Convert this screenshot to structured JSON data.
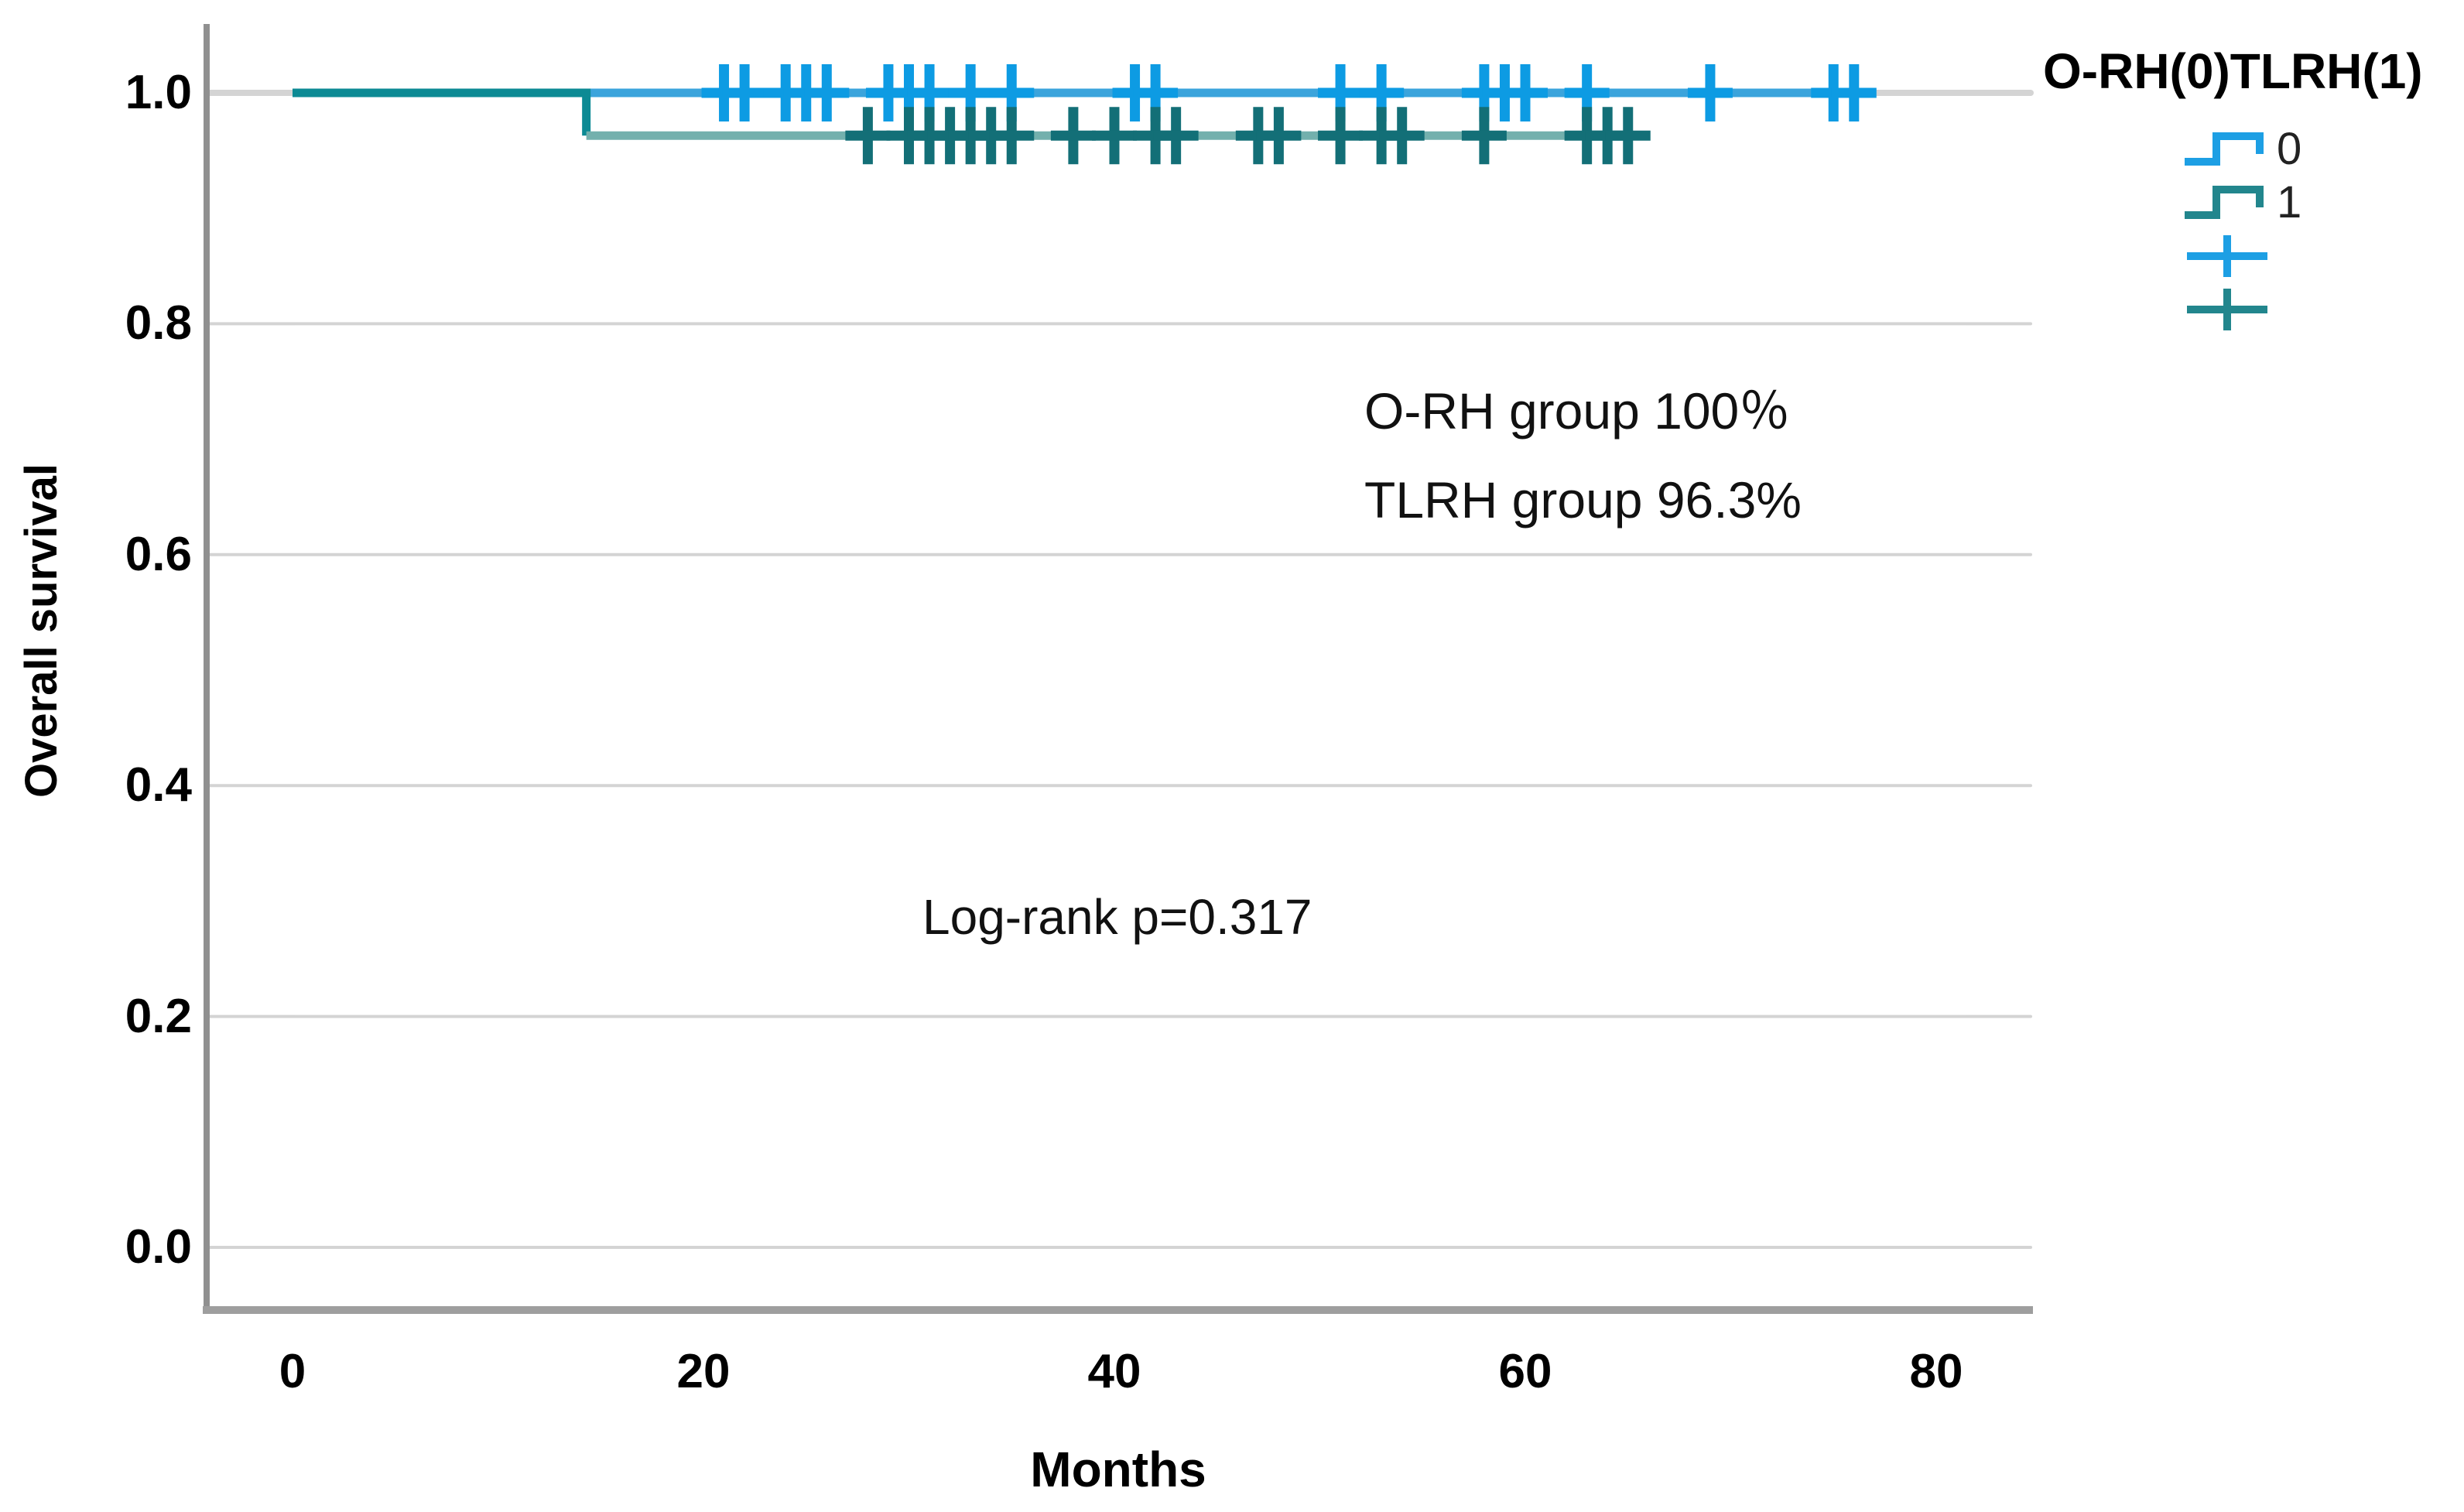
{
  "chart_data": {
    "type": "line",
    "subtype": "kaplan-meier-step-plot",
    "title": "",
    "xlabel": "Months",
    "ylabel": "Overall survival",
    "xlim": [
      -4,
      85
    ],
    "ylim": [
      -0.05,
      1.06
    ],
    "x_ticks": [
      "0",
      "20",
      "40",
      "60",
      "80"
    ],
    "x_tick_values": [
      0,
      20,
      40,
      60,
      80
    ],
    "y_ticks": [
      "1.0",
      "0.8",
      "0.6",
      "0.4",
      "0.2",
      "0.0"
    ],
    "y_tick_values": [
      1.0,
      0.8,
      0.6,
      0.4,
      0.2,
      0.0
    ],
    "grid": "horizontal",
    "grid_color": "#d4d4d4",
    "axis_color": "#909090",
    "legend": {
      "title": "O-RH(0)TLRH(1)",
      "position": "top-right",
      "entries": [
        {
          "label": "0",
          "symbol": "step-line",
          "color": "#1d9fe4"
        },
        {
          "label": "1",
          "symbol": "step-line",
          "color": "#22868d"
        },
        {
          "label": "",
          "symbol": "censor-plus",
          "color": "#1d9fe4"
        },
        {
          "label": "",
          "symbol": "censor-plus",
          "color": "#22868d"
        }
      ]
    },
    "series": [
      {
        "name": "0",
        "group": "O-RH",
        "final_survival": 1.0,
        "line_color": "#3ba4dc",
        "censor_color": "#0d9be3",
        "paths": [
          {
            "color": "#3ba4dc",
            "points": [
              [
                0,
                1.0
              ],
              [
                76.8,
                1.0
              ]
            ]
          }
        ],
        "censor_marks_x": [
          21,
          22,
          24,
          25,
          26,
          29,
          30,
          31,
          33,
          35,
          41,
          42,
          51,
          53,
          58,
          59,
          60,
          63,
          69,
          75,
          76
        ],
        "censor_y": 1.0
      },
      {
        "name": "1",
        "group": "TLRH",
        "final_survival": 0.963,
        "line_color": "#73b0ad",
        "censor_color": "#136f77",
        "paths": [
          {
            "color": "#0c8a94",
            "points": [
              [
                0,
                1.0
              ],
              [
                14.3,
                1.0
              ],
              [
                14.3,
                0.963
              ]
            ]
          },
          {
            "color": "#73b0ad",
            "points": [
              [
                14.3,
                0.963
              ],
              [
                65.7,
                0.963
              ]
            ]
          }
        ],
        "censor_marks_x": [
          28,
          30,
          31,
          32,
          33,
          34,
          35,
          38,
          40,
          42,
          43,
          47,
          48,
          51,
          53,
          54,
          58,
          63,
          64,
          65
        ],
        "censor_y": 0.963
      }
    ],
    "annotations": [
      {
        "id": "orh-survival",
        "text": "O-RH group 100％"
      },
      {
        "id": "tlrh-survival",
        "text": "TLRH group 96.3%"
      },
      {
        "id": "log-rank",
        "text": "Log-rank p=0.317"
      }
    ]
  }
}
